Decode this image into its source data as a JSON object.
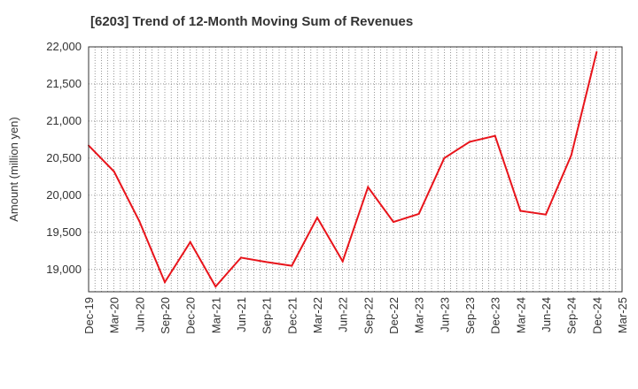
{
  "chart_data": {
    "type": "line",
    "title": "[6203]  Trend of 12-Month Moving Sum of Revenues",
    "xlabel": "",
    "ylabel": "Amount (million yen)",
    "ylim": [
      18700,
      22000
    ],
    "yticks": [
      19000,
      19500,
      20000,
      20500,
      21000,
      21500,
      22000
    ],
    "ytick_labels": [
      "19,000",
      "19,500",
      "20,000",
      "20,500",
      "21,000",
      "21,500",
      "22,000"
    ],
    "categories": [
      "Dec-19",
      "Mar-20",
      "Jun-20",
      "Sep-20",
      "Dec-20",
      "Mar-21",
      "Jun-21",
      "Sep-21",
      "Dec-21",
      "Mar-22",
      "Jun-22",
      "Sep-22",
      "Dec-22",
      "Mar-23",
      "Jun-23",
      "Sep-23",
      "Dec-23",
      "Mar-24",
      "Jun-24",
      "Sep-24",
      "Dec-24",
      "Mar-25"
    ],
    "series": [
      {
        "color": "#e8141b",
        "values": [
          20670,
          20320,
          19650,
          18830,
          19370,
          18770,
          19160,
          19100,
          19050,
          19700,
          19110,
          20110,
          19640,
          19750,
          20500,
          20720,
          20800,
          19790,
          19740,
          20540,
          21930,
          null
        ]
      }
    ],
    "grid": true
  }
}
